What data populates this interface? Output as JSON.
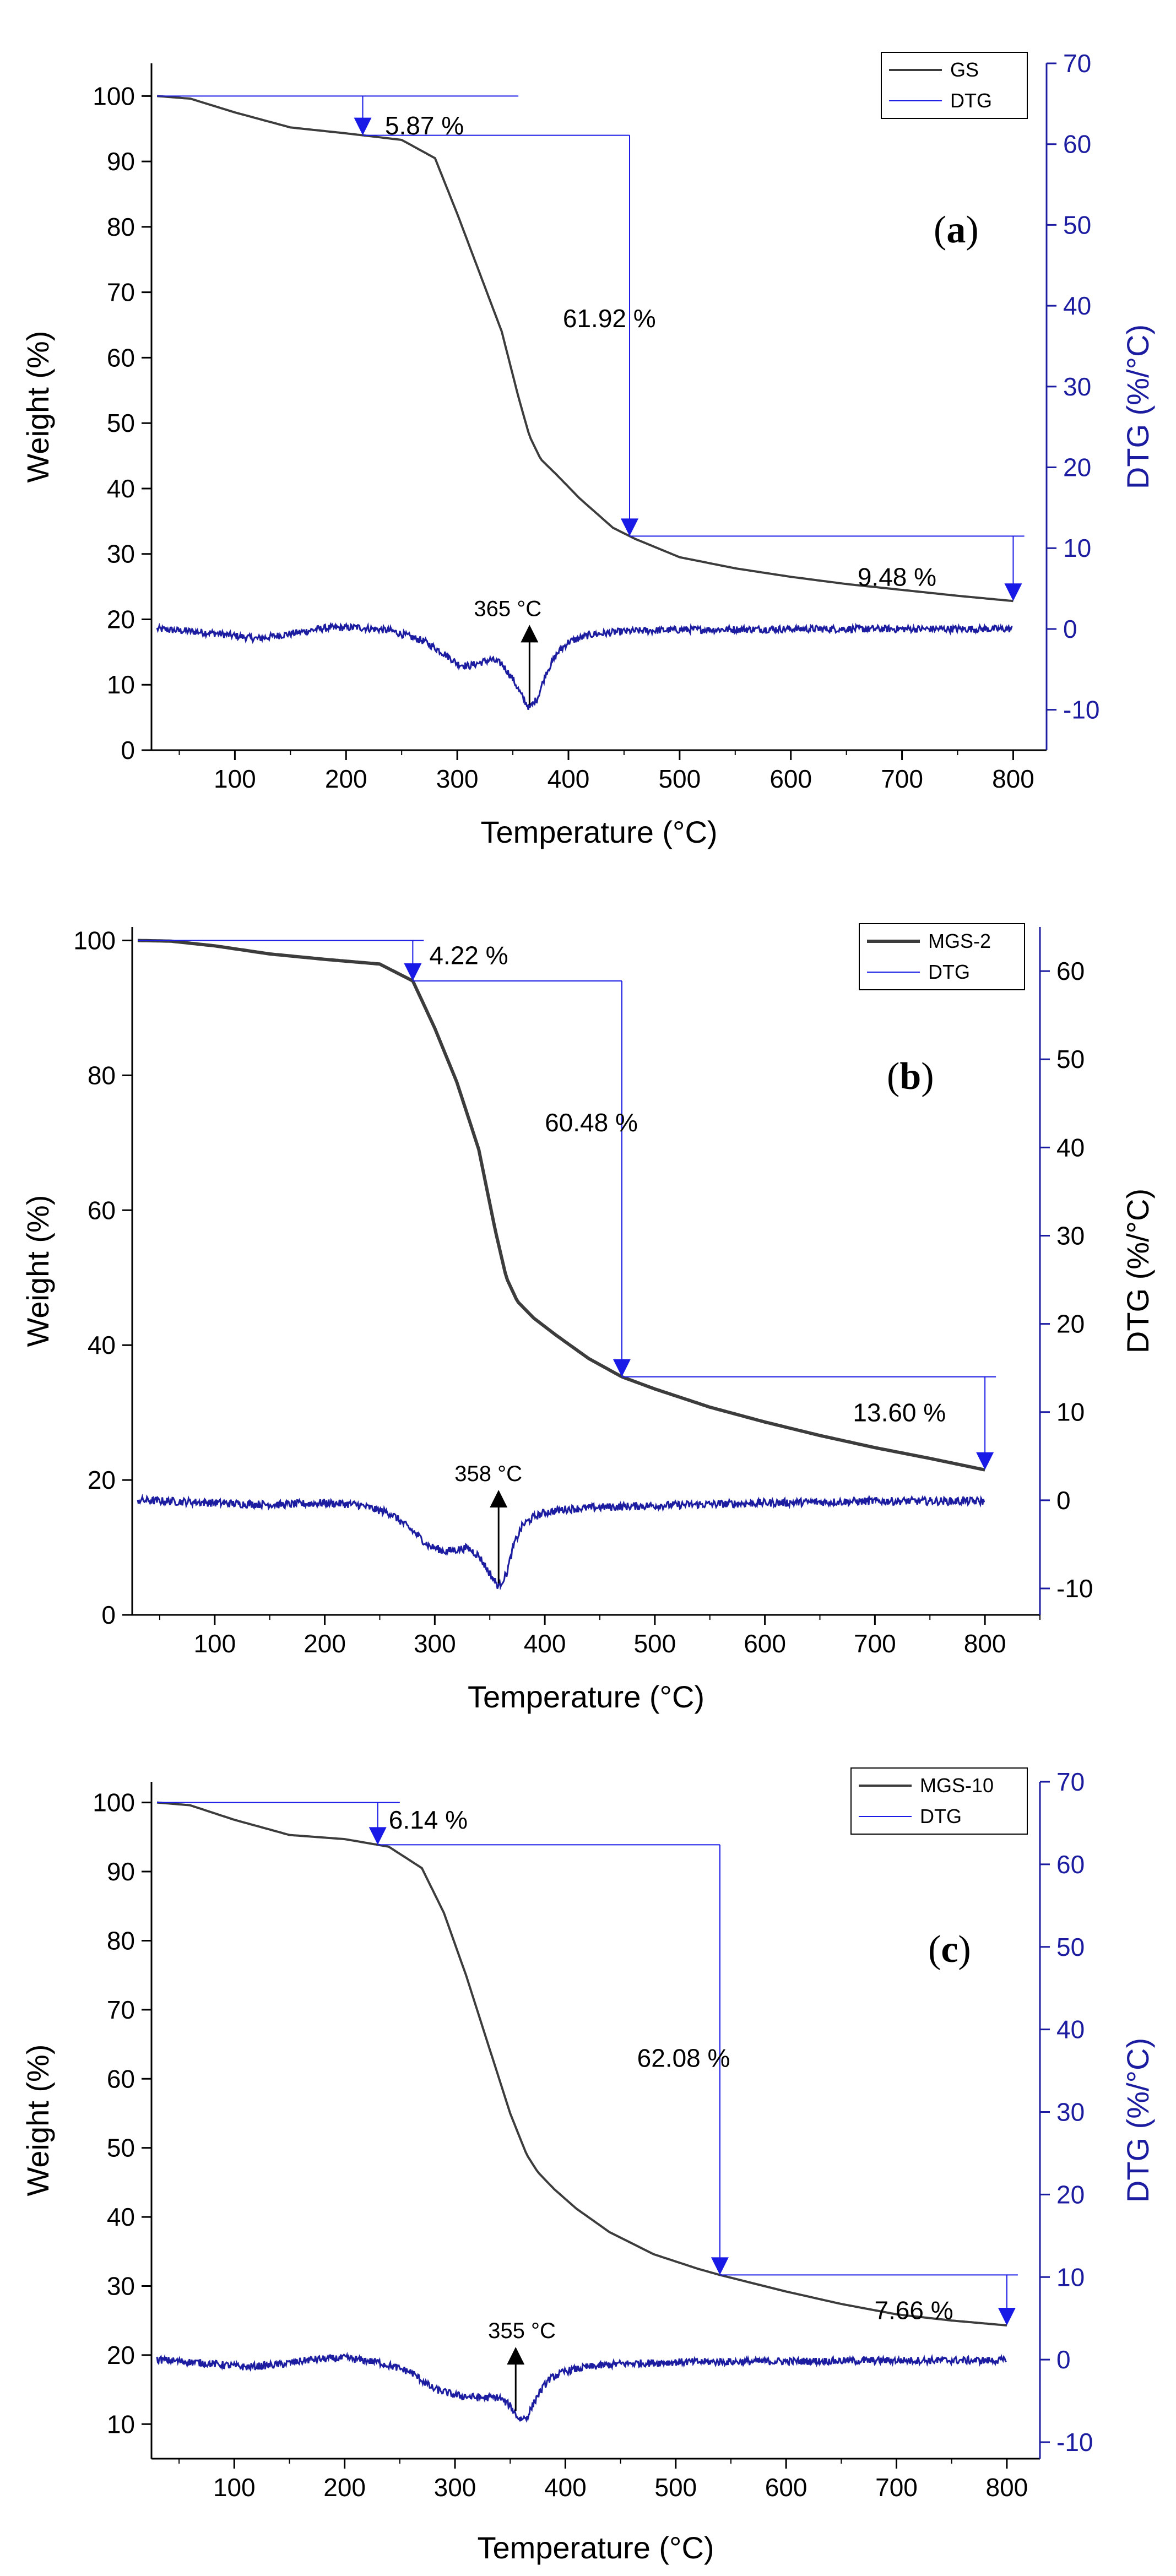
{
  "chart_data": [
    {
      "type": "line",
      "panel_label": "a",
      "title": "",
      "xlabel": "Temperature (°C)",
      "ylabel": "Weight (%)",
      "y2label": "DTG (%/°C)",
      "xlim": [
        25,
        830
      ],
      "ylim": [
        0,
        105
      ],
      "y2lim": [
        -15,
        70
      ],
      "x_ticks": [
        100,
        200,
        300,
        400,
        500,
        600,
        700,
        800
      ],
      "y_ticks": [
        0,
        10,
        20,
        30,
        40,
        50,
        60,
        70,
        80,
        90,
        100
      ],
      "y2_ticks": [
        -10,
        0,
        10,
        20,
        30,
        40,
        50,
        60,
        70
      ],
      "legend": [
        "GS",
        "DTG"
      ],
      "legend_position": "top-right",
      "series": [
        {
          "name": "GS",
          "axis": "left",
          "x": [
            30,
            60,
            100,
            150,
            200,
            250,
            280,
            300,
            320,
            340,
            355,
            365,
            375,
            390,
            410,
            440,
            460,
            500,
            550,
            600,
            650,
            700,
            750,
            800
          ],
          "y": [
            100,
            99.6,
            97.5,
            95.2,
            94.3,
            93.3,
            90.5,
            82,
            73,
            64,
            54,
            48,
            44.5,
            42,
            38.5,
            34,
            32.3,
            29.5,
            27.8,
            26.5,
            25.4,
            24.5,
            23.6,
            22.8
          ]
        },
        {
          "name": "DTG",
          "axis": "right",
          "x": [
            30,
            80,
            120,
            150,
            180,
            210,
            240,
            270,
            290,
            300,
            310,
            320,
            330,
            340,
            350,
            360,
            365,
            372,
            380,
            390,
            400,
            420,
            450,
            500,
            600,
            700,
            800
          ],
          "y": [
            0,
            -0.5,
            -1.2,
            -0.6,
            0.1,
            0.2,
            -0.2,
            -1.5,
            -3.2,
            -4.3,
            -4.6,
            -4.2,
            -3.8,
            -4.3,
            -6.2,
            -8.8,
            -9.8,
            -8.6,
            -5.4,
            -3.0,
            -1.6,
            -0.7,
            -0.3,
            -0.1,
            0,
            0,
            0
          ]
        }
      ],
      "annotations": [
        {
          "text": "5.87 %",
          "x": 235,
          "y": 95.5
        },
        {
          "text": "61.92 %",
          "x": 395,
          "y": 66
        },
        {
          "text": "9.48 %",
          "x": 660,
          "y": 26.5
        },
        {
          "text": "365 °C",
          "x": 315,
          "dtg": 1.2
        }
      ]
    },
    {
      "type": "line",
      "panel_label": "b",
      "title": "",
      "xlabel": "Temperature (°C)",
      "ylabel": "Weight (%)",
      "y2label": "DTG (%/°C)",
      "xlim": [
        25,
        850
      ],
      "ylim": [
        0,
        102
      ],
      "y2lim": [
        -13,
        65
      ],
      "x_ticks": [
        100,
        200,
        300,
        400,
        500,
        600,
        700,
        800
      ],
      "y_ticks": [
        0,
        20,
        40,
        60,
        80,
        100
      ],
      "y2_ticks": [
        -10,
        0,
        10,
        20,
        30,
        40,
        50,
        60
      ],
      "legend": [
        "MGS-2",
        "DTG"
      ],
      "legend_position": "top-right",
      "series": [
        {
          "name": "MGS-2",
          "axis": "left",
          "x": [
            30,
            60,
            100,
            150,
            200,
            250,
            280,
            300,
            320,
            340,
            355,
            365,
            375,
            390,
            410,
            440,
            470,
            500,
            550,
            600,
            650,
            700,
            750,
            800
          ],
          "y": [
            100,
            99.9,
            99.2,
            98,
            97.2,
            96.5,
            94,
            87,
            79,
            69,
            57,
            50,
            46.5,
            44,
            41.5,
            38,
            35.3,
            33.5,
            30.8,
            28.6,
            26.6,
            24.8,
            23.2,
            21.5
          ]
        },
        {
          "name": "DTG",
          "axis": "right",
          "x": [
            30,
            80,
            120,
            160,
            200,
            230,
            260,
            280,
            295,
            310,
            320,
            330,
            340,
            350,
            358,
            365,
            372,
            380,
            390,
            400,
            420,
            450,
            500,
            600,
            700,
            800
          ],
          "y": [
            0,
            -0.2,
            -0.4,
            -0.5,
            -0.3,
            -0.5,
            -1.5,
            -3.5,
            -5.2,
            -5.8,
            -5.6,
            -5.4,
            -6.3,
            -8.3,
            -9.8,
            -8.4,
            -5.0,
            -2.8,
            -1.9,
            -1.4,
            -1.0,
            -0.8,
            -0.6,
            -0.3,
            -0.1,
            -0.1
          ]
        }
      ],
      "annotations": [
        {
          "text": "4.22 %",
          "x": 295,
          "y": 97.8
        },
        {
          "text": "60.48 %",
          "x": 400,
          "y": 73
        },
        {
          "text": "13.60 %",
          "x": 680,
          "y": 30
        },
        {
          "text": "358 °C",
          "x": 318,
          "dtg": 1.8
        }
      ]
    },
    {
      "type": "line",
      "panel_label": "c",
      "title": "",
      "xlabel": "Temperature (°C)",
      "ylabel": "Weight (%)",
      "y2label": "DTG (%/°C)",
      "xlim": [
        25,
        830
      ],
      "ylim": [
        5,
        103
      ],
      "y2lim": [
        -12,
        70
      ],
      "x_ticks": [
        100,
        200,
        300,
        400,
        500,
        600,
        700,
        800
      ],
      "y_ticks": [
        10,
        20,
        30,
        40,
        50,
        60,
        70,
        80,
        90,
        100
      ],
      "y2_ticks": [
        -10,
        0,
        10,
        20,
        30,
        40,
        50,
        60,
        70
      ],
      "legend": [
        "MGS-10",
        "DTG"
      ],
      "legend_position": "top-right",
      "series": [
        {
          "name": "MGS-10",
          "axis": "left",
          "x": [
            30,
            60,
            100,
            150,
            200,
            240,
            270,
            290,
            310,
            330,
            350,
            365,
            375,
            390,
            410,
            440,
            480,
            520,
            540,
            600,
            650,
            700,
            750,
            800
          ],
          "y": [
            100,
            99.6,
            97.5,
            95.3,
            94.7,
            93.6,
            90.5,
            84,
            75,
            65,
            55,
            49,
            46.5,
            44,
            41.2,
            37.8,
            34.6,
            32.5,
            31.6,
            29.2,
            27.4,
            25.9,
            25,
            24.3
          ]
        },
        {
          "name": "DTG",
          "axis": "right",
          "x": [
            30,
            80,
            110,
            140,
            170,
            200,
            230,
            260,
            280,
            300,
            320,
            340,
            350,
            358,
            365,
            375,
            385,
            400,
            420,
            450,
            500,
            600,
            700,
            800
          ],
          "y": [
            0,
            -0.5,
            -0.9,
            -0.6,
            0,
            0.2,
            -0.3,
            -1.5,
            -3.5,
            -4.3,
            -4.6,
            -4.6,
            -5.6,
            -7.2,
            -7.0,
            -4.3,
            -2.4,
            -1.4,
            -0.9,
            -0.5,
            -0.3,
            -0.2,
            -0.1,
            -0.1
          ]
        }
      ],
      "annotations": [
        {
          "text": "6.14 %",
          "x": 240,
          "y": 97.5
        },
        {
          "text": "62.08 %",
          "x": 465,
          "y": 63
        },
        {
          "text": "7.66 %",
          "x": 680,
          "y": 26.5
        },
        {
          "text": "355 °C",
          "x": 330,
          "dtg": 2.2
        }
      ]
    }
  ],
  "colors": {
    "weight": "#3c3c3c",
    "dtg": "#1c1ca0",
    "arrow_blue": "#1a1ae6",
    "left_axis": "#000000",
    "right_axis": "#1c1ca0"
  }
}
